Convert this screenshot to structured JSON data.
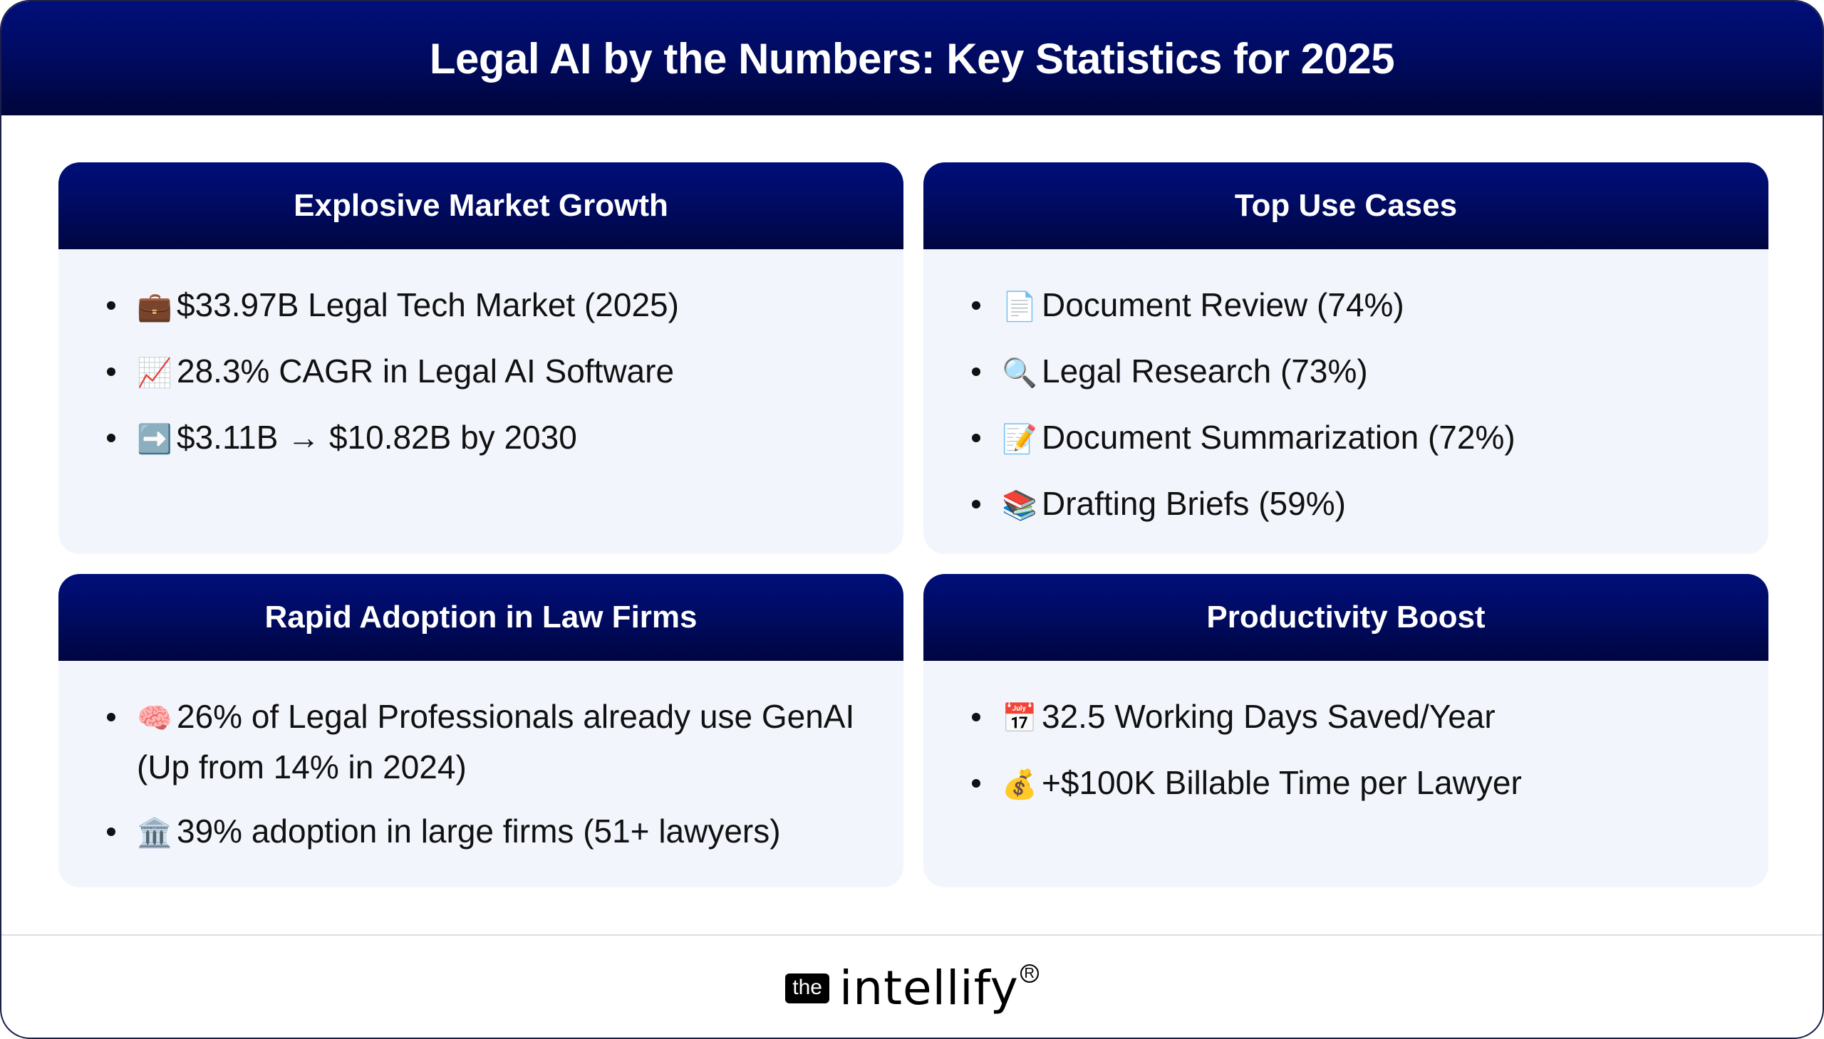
{
  "page": {
    "title": "Legal AI by the Numbers: Key Statistics for 2025"
  },
  "colors": {
    "band_top": "#000f7a",
    "band_bottom": "#00053a",
    "card_body": "#f3f5fd",
    "text": "#111111"
  },
  "cards": [
    {
      "title": "Explosive Market Growth",
      "items": [
        {
          "icon": "briefcase-icon",
          "emoji": "💼",
          "text": "$33.97B Legal Tech Market (2025)"
        },
        {
          "icon": "chart-increasing-icon",
          "emoji": "📈",
          "text": "28.3% CAGR in Legal AI Software"
        },
        {
          "icon": "right-arrow-icon",
          "emoji": "➡️",
          "text": "$3.11B → $10.82B by 2030"
        }
      ]
    },
    {
      "title": "Top Use Cases",
      "items": [
        {
          "icon": "page-document-icon",
          "emoji": "📄",
          "text": "Document Review (74%)"
        },
        {
          "icon": "magnifying-glass-icon",
          "emoji": "🔍",
          "text": "Legal Research (73%)"
        },
        {
          "icon": "memo-icon",
          "emoji": "📝",
          "text": "Document Summarization (72%)"
        },
        {
          "icon": "books-icon",
          "emoji": "📚",
          "text": "Drafting Briefs (59%)"
        }
      ]
    },
    {
      "title": "Rapid Adoption in Law Firms",
      "items": [
        {
          "icon": "brain-icon",
          "emoji": "🧠",
          "text": "26% of Legal Professionals already use GenAI (Up from 14% in 2024)"
        },
        {
          "icon": "classical-building-icon",
          "emoji": "🏛️",
          "text": "39% adoption in large firms (51+ lawyers)"
        }
      ]
    },
    {
      "title": "Productivity Boost",
      "items": [
        {
          "icon": "calendar-icon",
          "emoji": "📅",
          "text": "32.5 Working Days Saved/Year"
        },
        {
          "icon": "money-bag-icon",
          "emoji": "💰",
          "text": "+$100K Billable Time per Lawyer"
        }
      ]
    }
  ],
  "footer": {
    "logo_prefix": "the",
    "logo_word": "intellify",
    "logo_mark": "R"
  }
}
